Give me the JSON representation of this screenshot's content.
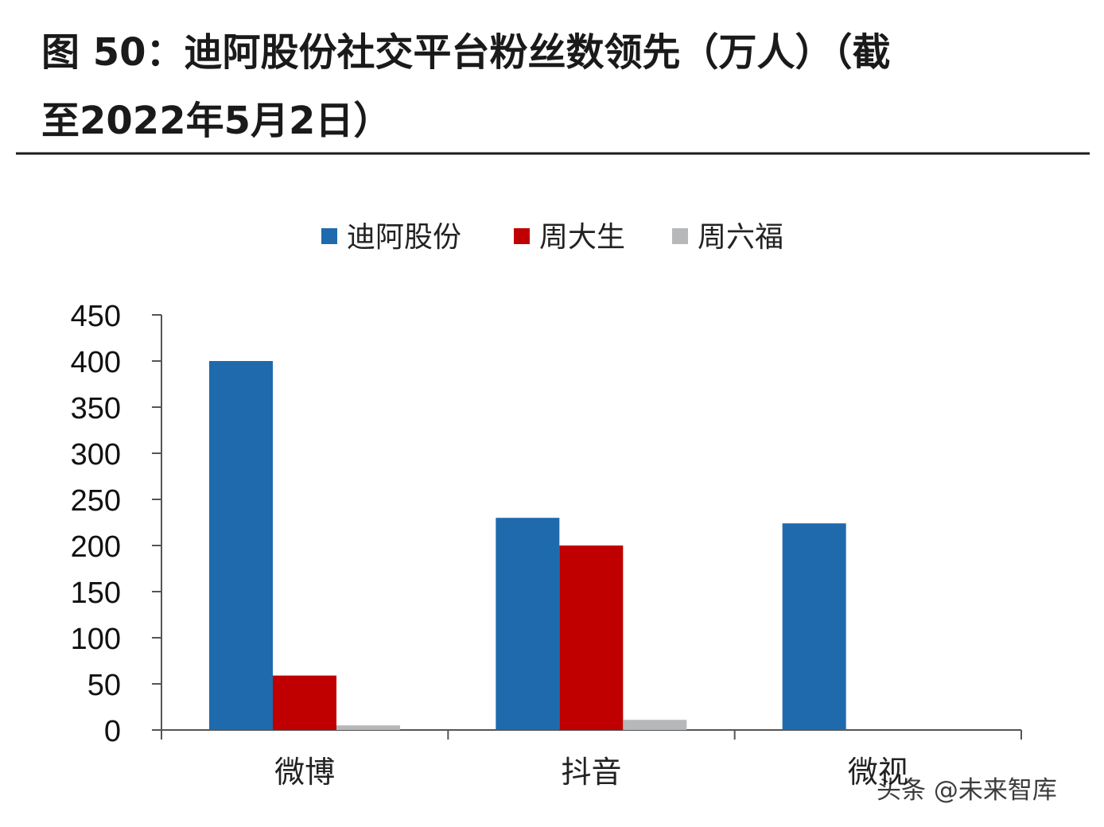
{
  "figure": {
    "title_line1": "图  50：迪阿股份社交平台粉丝数领先（万人）（截",
    "title_line2": "至2022年5月2日）"
  },
  "watermark": "头条 @未来智库",
  "chart_data": {
    "type": "bar",
    "categories": [
      "微博",
      "抖音",
      "微视"
    ],
    "series": [
      {
        "name": "迪阿股份",
        "color": "#1f6aad",
        "values": [
          400,
          230,
          224
        ]
      },
      {
        "name": "周大生",
        "color": "#c00000",
        "values": [
          59,
          200,
          0
        ]
      },
      {
        "name": "周六福",
        "color": "#b7b8ba",
        "values": [
          5,
          11,
          0
        ]
      }
    ],
    "ylim": [
      0,
      450
    ],
    "yticks": [
      "0",
      "50",
      "100",
      "150",
      "200",
      "250",
      "300",
      "350",
      "400",
      "450"
    ],
    "grid": false,
    "legend_position": "top-center"
  }
}
